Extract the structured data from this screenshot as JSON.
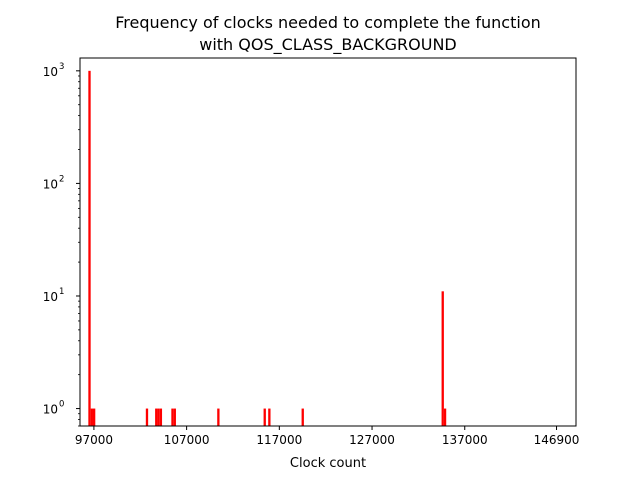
{
  "chart_data": {
    "type": "bar",
    "title_line1": "Frequency of clocks needed to complete the function",
    "title_line2": "with QOS_CLASS_BACKGROUND",
    "xlabel": "Clock count",
    "ylabel": "",
    "xlim": [
      95500,
      149000
    ],
    "ylim": [
      0.7,
      1300
    ],
    "y_scale": "log",
    "x_ticks": [
      {
        "value": 97000,
        "label": "97000"
      },
      {
        "value": 107000,
        "label": "107000"
      },
      {
        "value": 117000,
        "label": "117000"
      },
      {
        "value": 127000,
        "label": "127000"
      },
      {
        "value": 137000,
        "label": "137000"
      },
      {
        "value": 146900,
        "label": "146900"
      }
    ],
    "y_ticks": [
      {
        "value": 1,
        "base": "10",
        "exp": "0"
      },
      {
        "value": 10,
        "base": "10",
        "exp": "1"
      },
      {
        "value": 100,
        "base": "10",
        "exp": "2"
      },
      {
        "value": 1000,
        "base": "10",
        "exp": "3"
      }
    ],
    "bin_width": 250,
    "bar_color": "#ff0000",
    "grid": false,
    "bins": [
      {
        "x": 96400,
        "count": 1000
      },
      {
        "x": 96650,
        "count": 1
      },
      {
        "x": 96900,
        "count": 1
      },
      {
        "x": 102600,
        "count": 1
      },
      {
        "x": 103600,
        "count": 1
      },
      {
        "x": 103850,
        "count": 1
      },
      {
        "x": 104100,
        "count": 1
      },
      {
        "x": 105350,
        "count": 1
      },
      {
        "x": 105600,
        "count": 1
      },
      {
        "x": 110300,
        "count": 1
      },
      {
        "x": 115300,
        "count": 1
      },
      {
        "x": 115800,
        "count": 1
      },
      {
        "x": 119400,
        "count": 1
      },
      {
        "x": 134500,
        "count": 11
      },
      {
        "x": 134750,
        "count": 1
      }
    ]
  }
}
